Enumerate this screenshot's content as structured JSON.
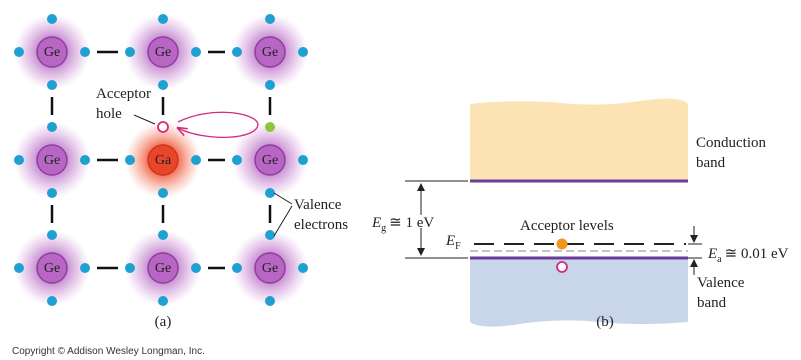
{
  "panel_a": {
    "atoms": [
      "Ge",
      "Ge",
      "Ge",
      "Ge",
      "Ga",
      "Ge",
      "Ge",
      "Ge",
      "Ge"
    ],
    "hole_label": [
      "Acceptor",
      "hole"
    ],
    "electron_label": [
      "Valence",
      "electrons"
    ],
    "caption": "(a)"
  },
  "panel_b": {
    "conduction_label": [
      "Conduction",
      "band"
    ],
    "gap": {
      "symbol": "E",
      "subscript": "g",
      "text": "≅ 1 eV"
    },
    "fermi": {
      "symbol": "E",
      "subscript": "F"
    },
    "acceptor_label": "Acceptor levels",
    "acceptor_energy": {
      "symbol": "E",
      "subscript": "a",
      "text": "≅ 0.01 eV"
    },
    "valence_label": [
      "Valence",
      "band"
    ],
    "caption": "(b)"
  },
  "copyright": "Copyright © Addison Wesley Longman, Inc."
}
